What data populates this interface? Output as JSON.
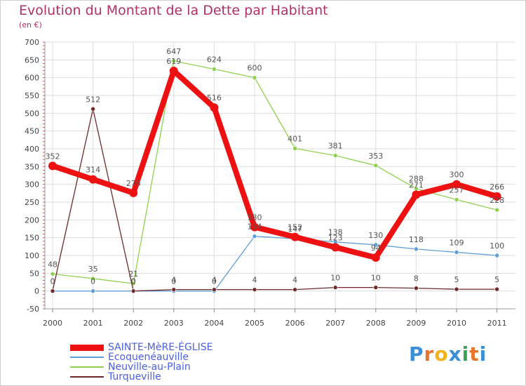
{
  "title": "Evolution du Montant de la Dette par Habitant",
  "subtitle": "(en €)",
  "logo": {
    "text": "Proxiti",
    "colors": [
      "#3b8fd6",
      "#e8752c",
      "#f2b21b",
      "#3b8fd6",
      "#3ca35a",
      "#e8752c",
      "#3b8fd6"
    ]
  },
  "chart_data": {
    "type": "line",
    "title": "Evolution du Montant de la Dette par Habitant",
    "subtitle": "(en €)",
    "xlabel": "",
    "ylabel": "",
    "x": [
      "2000",
      "2001",
      "2002",
      "2003",
      "2004",
      "2005",
      "2006",
      "2007",
      "2008",
      "2009",
      "2010",
      "2011"
    ],
    "ylim": [
      -50,
      700
    ],
    "yticks": [
      -50,
      0,
      50,
      100,
      150,
      200,
      250,
      300,
      350,
      400,
      450,
      500,
      550,
      600,
      650,
      700
    ],
    "grid": true,
    "legend_position": "bottom-left",
    "series": [
      {
        "name": "Neuville-au-Plain",
        "color": "#8fd14f",
        "values": [
          48,
          35,
          21,
          647,
          624,
          600,
          401,
          381,
          353,
          288,
          257,
          228
        ]
      },
      {
        "name": "Ecoquenéauville",
        "color": "#5f9ed8",
        "values": [
          0,
          0,
          0,
          0,
          0,
          154,
          147,
          138,
          130,
          118,
          109,
          100
        ]
      },
      {
        "name": "Turqueville",
        "color": "#6e2a2a",
        "values": [
          0,
          512,
          0,
          4,
          4,
          4,
          4,
          10,
          10,
          8,
          5,
          5
        ]
      },
      {
        "name": "SAINTE-MèRE-ÉGLISE",
        "color": "#ee1111",
        "values": [
          352,
          314,
          276,
          619,
          516,
          180,
          152,
          123,
          94,
          271,
          300,
          266
        ]
      }
    ],
    "point_labels": [
      {
        "x": "2000",
        "text": "352",
        "value": 352
      },
      {
        "x": "2001",
        "text": "314",
        "value": 314
      },
      {
        "x": "2002",
        "text": "276",
        "value": 276
      },
      {
        "x": "2003",
        "text": "619",
        "value": 619
      },
      {
        "x": "2004",
        "text": "516",
        "value": 516
      },
      {
        "x": "2005",
        "text": "180",
        "value": 180
      },
      {
        "x": "2006",
        "text": "152",
        "value": 152
      },
      {
        "x": "2007",
        "text": "123",
        "value": 123
      },
      {
        "x": "2008",
        "text": "94",
        "value": 94
      },
      {
        "x": "2009",
        "text": "271",
        "value": 271
      },
      {
        "x": "2010",
        "text": "300",
        "value": 300
      },
      {
        "x": "2011",
        "text": "266",
        "value": 266
      },
      {
        "x": "2000",
        "text": "48",
        "value": 48
      },
      {
        "x": "2001",
        "text": "35",
        "value": 35
      },
      {
        "x": "2002",
        "text": "21",
        "value": 21
      },
      {
        "x": "2003",
        "text": "647",
        "value": 647
      },
      {
        "x": "2004",
        "text": "624",
        "value": 624
      },
      {
        "x": "2005",
        "text": "600",
        "value": 600
      },
      {
        "x": "2006",
        "text": "401",
        "value": 401
      },
      {
        "x": "2007",
        "text": "381",
        "value": 381
      },
      {
        "x": "2008",
        "text": "353",
        "value": 353
      },
      {
        "x": "2009",
        "text": "288",
        "value": 288
      },
      {
        "x": "2010",
        "text": "257",
        "value": 257
      },
      {
        "x": "2011",
        "text": "228",
        "value": 228
      },
      {
        "x": "2005",
        "text": "154",
        "value": 154
      },
      {
        "x": "2006",
        "text": "147",
        "value": 147
      },
      {
        "x": "2007",
        "text": "138",
        "value": 138
      },
      {
        "x": "2008",
        "text": "130",
        "value": 130
      },
      {
        "x": "2009",
        "text": "118",
        "value": 118
      },
      {
        "x": "2010",
        "text": "109",
        "value": 109
      },
      {
        "x": "2011",
        "text": "100",
        "value": 100
      },
      {
        "x": "2000",
        "text": "0",
        "value": 0
      },
      {
        "x": "2001",
        "text": "0",
        "value": 0
      },
      {
        "x": "2002",
        "text": "0",
        "value": 0
      },
      {
        "x": "2003",
        "text": "0",
        "value": 0
      },
      {
        "x": "2004",
        "text": "0",
        "value": 0
      },
      {
        "x": "2001",
        "text": "512",
        "value": 512
      },
      {
        "x": "2002",
        "text": "0",
        "value": 0
      },
      {
        "x": "2003",
        "text": "4",
        "value": 4
      },
      {
        "x": "2004",
        "text": "4",
        "value": 4
      },
      {
        "x": "2005",
        "text": "4",
        "value": 4
      },
      {
        "x": "2006",
        "text": "4",
        "value": 4
      },
      {
        "x": "2007",
        "text": "10",
        "value": 10
      },
      {
        "x": "2008",
        "text": "10",
        "value": 10
      },
      {
        "x": "2009",
        "text": "8",
        "value": 8
      },
      {
        "x": "2010",
        "text": "5",
        "value": 5
      },
      {
        "x": "2011",
        "text": "5",
        "value": 5
      }
    ]
  },
  "legend": [
    {
      "label": "SAINTE-MèRE-ÉGLISE",
      "color": "#ee1111"
    },
    {
      "label": "Ecoquenéauville",
      "color": "#5f9ed8"
    },
    {
      "label": "Neuville-au-Plain",
      "color": "#8fd14f"
    },
    {
      "label": "Turqueville",
      "color": "#6e2a2a"
    }
  ]
}
